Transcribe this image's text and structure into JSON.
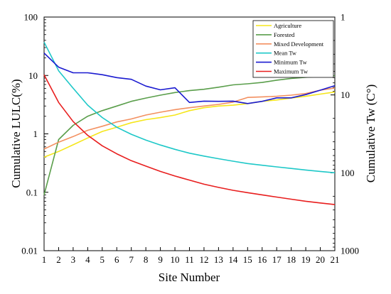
{
  "chart_data": {
    "type": "line",
    "title": "",
    "xlabel": "Site Number",
    "ylabel": "Cumulative LULC(%)",
    "y2label": "Cumulative Tw (C°)",
    "x": [
      1,
      2,
      3,
      4,
      5,
      6,
      7,
      8,
      9,
      10,
      11,
      12,
      13,
      14,
      15,
      16,
      17,
      18,
      19,
      20,
      21
    ],
    "xlim": [
      1,
      21
    ],
    "ylim": [
      0.01,
      100
    ],
    "y2lim": [
      1,
      1000
    ],
    "yscale": "log",
    "y2scale": "log",
    "y2_inverted": true,
    "grid": false,
    "legend_position": "top-right",
    "y_ticks": [
      "0.01",
      "0.1",
      "1",
      "10",
      "100"
    ],
    "y2_ticks": [
      "1",
      "10",
      "100",
      "1000"
    ],
    "series": [
      {
        "name": "Agriculture",
        "color": "#f5e61c",
        "axis": "left",
        "values": [
          0.4,
          0.5,
          0.65,
          0.85,
          1.1,
          1.3,
          1.55,
          1.75,
          1.9,
          2.1,
          2.5,
          2.8,
          3.0,
          3.1,
          3.3,
          3.6,
          3.8,
          4.1,
          4.4,
          4.8,
          5.2
        ]
      },
      {
        "name": "Forested",
        "color": "#5a9e4b",
        "axis": "left",
        "values": [
          0.09,
          0.8,
          1.4,
          2.0,
          2.5,
          3.0,
          3.6,
          4.1,
          4.6,
          5.1,
          5.5,
          5.8,
          6.3,
          6.9,
          7.2,
          7.6,
          8.3,
          8.9,
          9.3,
          9.6,
          9.9
        ]
      },
      {
        "name": "Mixed Development",
        "color": "#f39060",
        "axis": "left",
        "values": [
          0.55,
          0.72,
          0.9,
          1.15,
          1.35,
          1.6,
          1.8,
          2.1,
          2.35,
          2.6,
          2.8,
          3.0,
          3.2,
          3.5,
          4.2,
          4.3,
          4.4,
          4.6,
          4.9,
          5.6,
          6.1
        ]
      },
      {
        "name": "Mean Tw",
        "color": "#1ec8c8",
        "axis": "right",
        "values": [
          2.1,
          4.9,
          8.2,
          13.5,
          19.5,
          26,
          32,
          38,
          44,
          50,
          56,
          61,
          66,
          71,
          76,
          80,
          84,
          88,
          92,
          96,
          100
        ]
      },
      {
        "name": "Minimum Tw",
        "color": "#1a1ad0",
        "axis": "right",
        "values": [
          2.9,
          4.4,
          5.2,
          5.2,
          5.5,
          6.0,
          6.3,
          7.7,
          8.6,
          8.1,
          12.5,
          12.0,
          12.1,
          12.0,
          12.9,
          12.1,
          10.9,
          10.9,
          9.9,
          8.7,
          7.6
        ]
      },
      {
        "name": "Maximum Tw",
        "color": "#e81e1e",
        "axis": "right",
        "values": [
          5.5,
          12.5,
          22,
          33,
          45,
          57,
          70,
          82,
          96,
          110,
          124,
          140,
          154,
          168,
          180,
          192,
          205,
          218,
          232,
          244,
          256
        ]
      }
    ]
  }
}
